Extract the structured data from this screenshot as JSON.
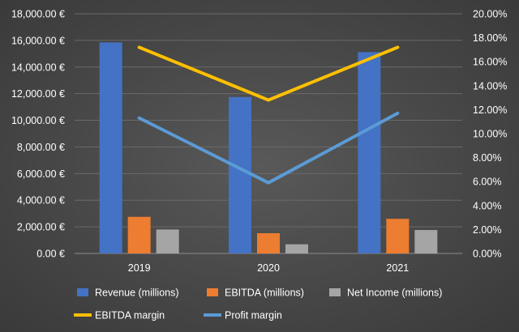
{
  "chart_data": {
    "type": "bar",
    "categories": [
      "2019",
      "2020",
      "2021"
    ],
    "series": [
      {
        "name": "Revenue (millions)",
        "kind": "bar",
        "axis": "left",
        "color": "#4472C4",
        "values": [
          15850,
          11750,
          15120
        ]
      },
      {
        "name": "EBITDA (millions)",
        "kind": "bar",
        "axis": "left",
        "color": "#ED7D31",
        "values": [
          2750,
          1520,
          2600
        ]
      },
      {
        "name": "Net Income (millions)",
        "kind": "bar",
        "axis": "left",
        "color": "#A5A5A5",
        "values": [
          1800,
          690,
          1760
        ]
      },
      {
        "name": "EBITDA margin",
        "kind": "line",
        "axis": "right",
        "color": "#FFC000",
        "values": [
          0.172,
          0.128,
          0.172
        ]
      },
      {
        "name": "Profit margin",
        "kind": "line",
        "axis": "right",
        "color": "#5B9BD5",
        "values": [
          0.113,
          0.059,
          0.117
        ]
      }
    ],
    "y_left": {
      "ylim": [
        0,
        18000
      ],
      "ticks": [
        "0.00 €",
        "2,000.00 €",
        "4,000.00 €",
        "6,000.00 €",
        "8,000.00 €",
        "10,000.00 €",
        "12,000.00 €",
        "14,000.00 €",
        "16,000.00 €",
        "18,000.00 €"
      ]
    },
    "y_right": {
      "ylim": [
        0,
        0.2
      ],
      "ticks": [
        "0.00%",
        "2.00%",
        "4.00%",
        "6.00%",
        "8.00%",
        "10.00%",
        "12.00%",
        "14.00%",
        "16.00%",
        "18.00%",
        "20.00%"
      ]
    },
    "grid": true,
    "legend_position": "bottom",
    "title": "",
    "xlabel": "",
    "ylabel": ""
  }
}
